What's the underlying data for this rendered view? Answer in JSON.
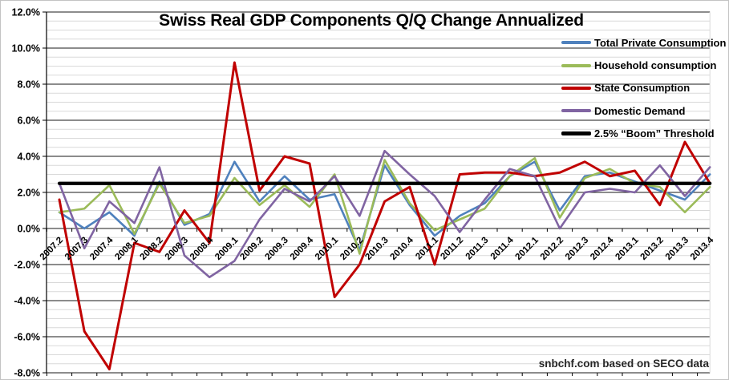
{
  "chart_data": {
    "type": "line",
    "title": "Swiss Real GDP Components Q/Q Change Annualized",
    "footer": "snbchf.com based on SECO data",
    "legend_position": "top-right",
    "y_axis": {
      "min": -8.0,
      "max": 12.0,
      "major_step": 2.0,
      "minor_step": 0.5,
      "tick_labels": [
        "12.0%",
        "10.0%",
        "8.0%",
        "6.0%",
        "4.0%",
        "2.0%",
        "0.0%",
        "-2.0%",
        "-4.0%",
        "-6.0%",
        "-8.0%"
      ],
      "unit": "%"
    },
    "gridlines": {
      "major_color": "#1a1a1a",
      "minor_color": "#d9d9d9",
      "minor_on": true,
      "major_on": true
    },
    "categories": [
      "2007.2",
      "2007.3",
      "2007.4",
      "2008.1",
      "2008.2",
      "2008.3",
      "2008.4",
      "2009.1",
      "2009.2",
      "2009.3",
      "2009.4",
      "2010.1",
      "2010.2",
      "2010.3",
      "2010.4",
      "2011.1",
      "2011.2",
      "2011.3",
      "2011.4",
      "2012.1",
      "2012.2",
      "2012.3",
      "2012.4",
      "2013.1",
      "2013.2",
      "2013.3",
      "2013.4"
    ],
    "series": [
      {
        "name": "Total Private Consumption",
        "color": "#4F81BD",
        "width": 2.6,
        "values": [
          0.9,
          0.0,
          0.9,
          -0.4,
          2.6,
          0.2,
          0.8,
          3.7,
          1.5,
          2.9,
          1.6,
          1.9,
          -1.2,
          3.5,
          1.3,
          -0.4,
          0.7,
          1.4,
          2.9,
          3.7,
          1.0,
          2.9,
          3.1,
          2.6,
          2.1,
          1.6,
          3.0
        ]
      },
      {
        "name": "Household consumption",
        "color": "#9BBB59",
        "width": 2.6,
        "values": [
          0.9,
          1.1,
          2.4,
          -0.3,
          2.5,
          0.3,
          0.7,
          2.8,
          1.3,
          2.4,
          1.2,
          3.0,
          -1.4,
          3.8,
          1.4,
          -0.1,
          0.5,
          1.1,
          2.9,
          3.9,
          0.6,
          2.8,
          3.3,
          2.5,
          2.3,
          0.9,
          2.3
        ]
      },
      {
        "name": "State Consumption",
        "color": "#C00000",
        "width": 3.0,
        "values": [
          1.6,
          -5.7,
          -7.8,
          -0.8,
          -1.3,
          1.0,
          -0.8,
          9.2,
          2.1,
          4.0,
          3.6,
          -3.8,
          -2.0,
          1.5,
          2.3,
          -2.0,
          3.0,
          3.1,
          3.1,
          2.9,
          3.1,
          3.7,
          2.9,
          3.2,
          1.3,
          4.8,
          2.5
        ]
      },
      {
        "name": "Domestic Demand",
        "color": "#8064A2",
        "width": 2.6,
        "values": [
          2.5,
          -1.1,
          1.5,
          0.3,
          3.4,
          -1.5,
          -2.7,
          -1.8,
          0.5,
          2.2,
          1.5,
          2.9,
          0.7,
          4.3,
          3.0,
          1.8,
          -0.2,
          1.6,
          3.3,
          2.9,
          0.0,
          2.0,
          2.2,
          2.0,
          3.5,
          1.8,
          3.4
        ]
      },
      {
        "name": "2.5% “Boom” Threshold",
        "color": "#000000",
        "width": 4.2,
        "constant_value": 2.5
      }
    ]
  }
}
